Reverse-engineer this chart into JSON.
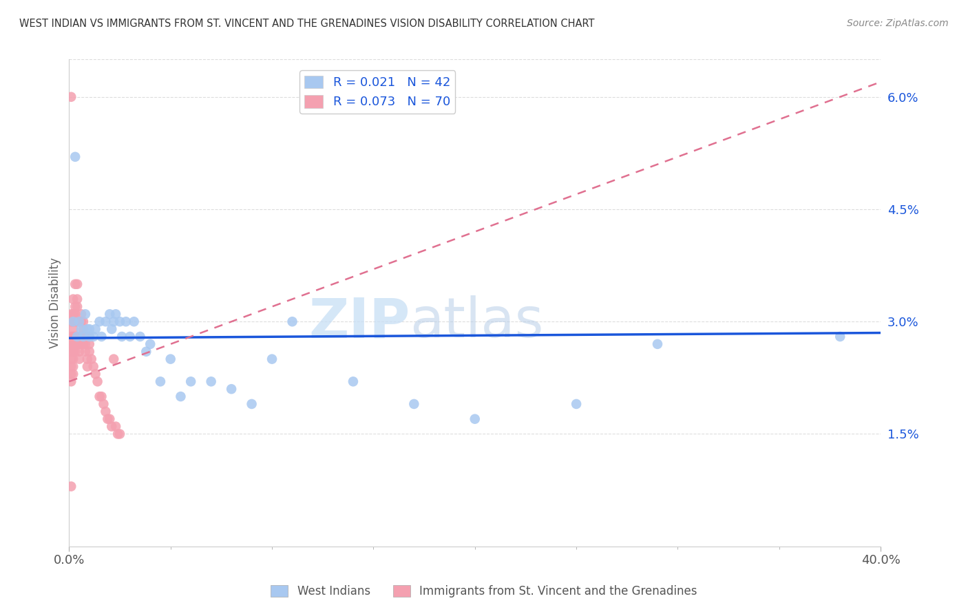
{
  "title": "WEST INDIAN VS IMMIGRANTS FROM ST. VINCENT AND THE GRENADINES VISION DISABILITY CORRELATION CHART",
  "source": "Source: ZipAtlas.com",
  "ylabel": "Vision Disability",
  "blue_label": "West Indians",
  "pink_label": "Immigrants from St. Vincent and the Grenadines",
  "blue_R": 0.021,
  "blue_N": 42,
  "pink_R": 0.073,
  "pink_N": 70,
  "xlim": [
    0.0,
    0.4
  ],
  "ylim": [
    0.0,
    0.065
  ],
  "yticks": [
    0.015,
    0.03,
    0.045,
    0.06
  ],
  "ytick_labels": [
    "1.5%",
    "3.0%",
    "4.5%",
    "6.0%"
  ],
  "xtick_labels": [
    "0.0%",
    "40.0%"
  ],
  "xtick_positions": [
    0.0,
    0.4
  ],
  "blue_color": "#a8c8f0",
  "pink_color": "#f4a0b0",
  "blue_line_color": "#1a56db",
  "pink_line_color": "#e07090",
  "grid_color": "#dddddd",
  "blue_scatter_x": [
    0.002,
    0.003,
    0.004,
    0.005,
    0.006,
    0.007,
    0.008,
    0.009,
    0.01,
    0.01,
    0.012,
    0.013,
    0.015,
    0.016,
    0.018,
    0.02,
    0.021,
    0.022,
    0.023,
    0.025,
    0.026,
    0.028,
    0.03,
    0.032,
    0.035,
    0.038,
    0.04,
    0.045,
    0.05,
    0.055,
    0.06,
    0.07,
    0.08,
    0.09,
    0.1,
    0.11,
    0.14,
    0.17,
    0.2,
    0.25,
    0.29,
    0.38
  ],
  "blue_scatter_y": [
    0.03,
    0.052,
    0.028,
    0.03,
    0.029,
    0.028,
    0.031,
    0.029,
    0.028,
    0.029,
    0.028,
    0.029,
    0.03,
    0.028,
    0.03,
    0.031,
    0.029,
    0.03,
    0.031,
    0.03,
    0.028,
    0.03,
    0.028,
    0.03,
    0.028,
    0.026,
    0.027,
    0.022,
    0.025,
    0.02,
    0.022,
    0.022,
    0.021,
    0.019,
    0.025,
    0.03,
    0.022,
    0.019,
    0.017,
    0.019,
    0.027,
    0.028
  ],
  "pink_scatter_x": [
    0.001,
    0.001,
    0.001,
    0.001,
    0.001,
    0.001,
    0.001,
    0.001,
    0.001,
    0.001,
    0.002,
    0.002,
    0.002,
    0.002,
    0.002,
    0.002,
    0.002,
    0.002,
    0.002,
    0.002,
    0.003,
    0.003,
    0.003,
    0.003,
    0.003,
    0.003,
    0.003,
    0.004,
    0.004,
    0.004,
    0.004,
    0.004,
    0.004,
    0.005,
    0.005,
    0.005,
    0.005,
    0.005,
    0.006,
    0.006,
    0.006,
    0.006,
    0.007,
    0.007,
    0.007,
    0.007,
    0.008,
    0.008,
    0.008,
    0.009,
    0.009,
    0.01,
    0.01,
    0.01,
    0.011,
    0.012,
    0.013,
    0.014,
    0.015,
    0.016,
    0.017,
    0.018,
    0.019,
    0.02,
    0.021,
    0.022,
    0.023,
    0.024,
    0.025,
    0.001
  ],
  "pink_scatter_y": [
    0.06,
    0.03,
    0.031,
    0.028,
    0.027,
    0.026,
    0.025,
    0.024,
    0.023,
    0.022,
    0.033,
    0.031,
    0.03,
    0.029,
    0.028,
    0.027,
    0.026,
    0.025,
    0.024,
    0.023,
    0.035,
    0.032,
    0.031,
    0.03,
    0.028,
    0.027,
    0.026,
    0.035,
    0.033,
    0.032,
    0.03,
    0.028,
    0.027,
    0.03,
    0.028,
    0.027,
    0.026,
    0.025,
    0.031,
    0.03,
    0.028,
    0.027,
    0.03,
    0.029,
    0.028,
    0.027,
    0.028,
    0.027,
    0.026,
    0.025,
    0.024,
    0.028,
    0.027,
    0.026,
    0.025,
    0.024,
    0.023,
    0.022,
    0.02,
    0.02,
    0.019,
    0.018,
    0.017,
    0.017,
    0.016,
    0.025,
    0.016,
    0.015,
    0.015,
    0.008
  ],
  "blue_line_x0": 0.0,
  "blue_line_x1": 0.4,
  "blue_line_y0": 0.0278,
  "blue_line_y1": 0.0285,
  "pink_line_x0": 0.0,
  "pink_line_x1": 0.4,
  "pink_line_y0": 0.022,
  "pink_line_y1": 0.062
}
